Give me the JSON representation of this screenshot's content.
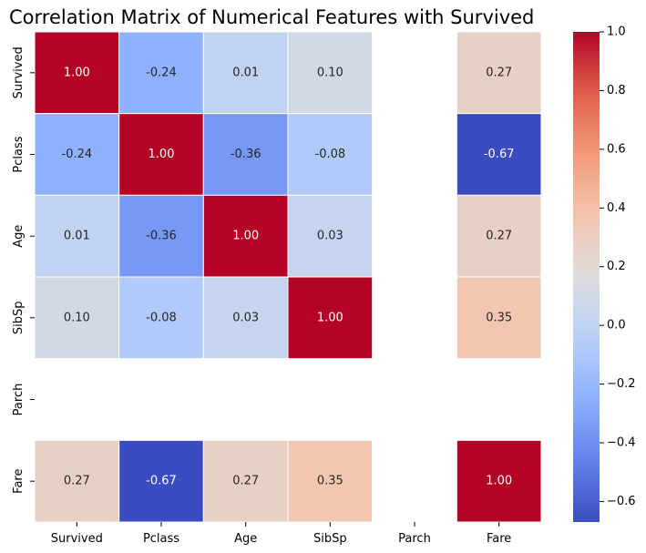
{
  "chart_data": {
    "type": "heatmap",
    "title": "Correlation Matrix of Numerical Features with Survived",
    "xlabel": "",
    "ylabel": "",
    "x_categories": [
      "Survived",
      "Pclass",
      "Age",
      "SibSp",
      "Parch",
      "Fare"
    ],
    "y_categories": [
      "Survived",
      "Pclass",
      "Age",
      "SibSp",
      "Parch",
      "Fare"
    ],
    "values": [
      [
        1.0,
        -0.24,
        0.01,
        0.1,
        null,
        0.27
      ],
      [
        -0.24,
        1.0,
        -0.36,
        -0.08,
        null,
        -0.67
      ],
      [
        0.01,
        -0.36,
        1.0,
        0.03,
        null,
        0.27
      ],
      [
        0.1,
        -0.08,
        0.03,
        1.0,
        null,
        0.35
      ],
      [
        null,
        null,
        null,
        null,
        null,
        null
      ],
      [
        0.27,
        -0.67,
        0.27,
        0.35,
        null,
        1.0
      ]
    ],
    "value_format": "0.00",
    "colormap": "coolwarm",
    "colorbar": {
      "range": [
        -0.67,
        1.0
      ],
      "ticks": [
        -0.6,
        -0.4,
        -0.2,
        0.0,
        0.2,
        0.4,
        0.6,
        0.8,
        1.0
      ],
      "tick_labels": [
        "−0.6",
        "−0.4",
        "−0.2",
        "0.0",
        "0.2",
        "0.4",
        "0.6",
        "0.8",
        "1.0"
      ]
    },
    "cell_border_color": "#ffffff",
    "grid": false,
    "legend": "colorbar-right"
  }
}
